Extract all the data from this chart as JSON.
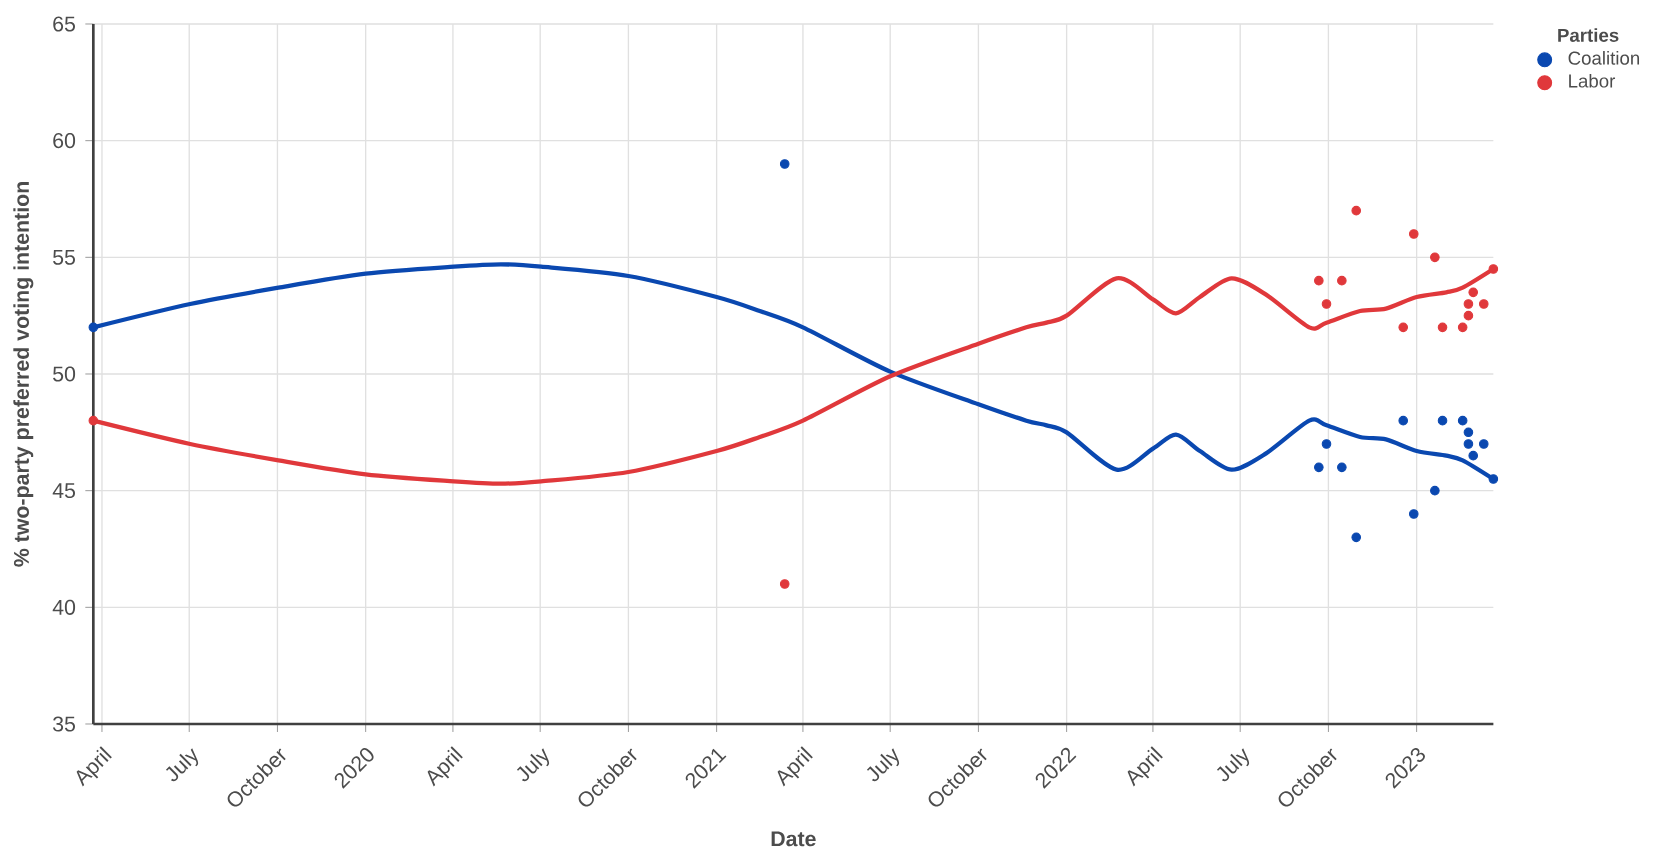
{
  "chart_data": {
    "type": "scatter",
    "xlabel": "Date",
    "ylabel": "% two-party preferred voting intention",
    "legend_title": "Parties",
    "xlim": [
      "2019-03-23",
      "2023-03-22"
    ],
    "ylim": [
      35,
      65
    ],
    "xticks": [
      {
        "value": "2019-04-01",
        "label": "April"
      },
      {
        "value": "2019-07-01",
        "label": "July"
      },
      {
        "value": "2019-10-01",
        "label": "October"
      },
      {
        "value": "2020-01-01",
        "label": "2020"
      },
      {
        "value": "2020-04-01",
        "label": "April"
      },
      {
        "value": "2020-07-01",
        "label": "July"
      },
      {
        "value": "2020-10-01",
        "label": "October"
      },
      {
        "value": "2021-01-01",
        "label": "2021"
      },
      {
        "value": "2021-04-01",
        "label": "April"
      },
      {
        "value": "2021-07-01",
        "label": "July"
      },
      {
        "value": "2021-10-01",
        "label": "October"
      },
      {
        "value": "2022-01-01",
        "label": "2022"
      },
      {
        "value": "2022-04-01",
        "label": "April"
      },
      {
        "value": "2022-07-01",
        "label": "July"
      },
      {
        "value": "2022-10-01",
        "label": "October"
      },
      {
        "value": "2023-01-01",
        "label": "2023"
      }
    ],
    "yticks": [
      35,
      40,
      45,
      50,
      55,
      60,
      65
    ],
    "grid": true,
    "legend": "top right",
    "series": [
      {
        "name": "Coalition",
        "type": "scatter",
        "marker": "circle",
        "color": "#0a48b0",
        "x": [
          "2019-03-23",
          "2021-03-13",
          "2022-09-21",
          "2022-09-29",
          "2022-10-15",
          "2022-10-30",
          "2022-12-18",
          "2022-12-29",
          "2023-01-20",
          "2023-01-28",
          "2023-02-18",
          "2023-02-24",
          "2023-02-24",
          "2023-03-01",
          "2023-03-12",
          "2023-03-22"
        ],
        "values": [
          52,
          59,
          46,
          47,
          46,
          43,
          48,
          44,
          45,
          48,
          48,
          47,
          47.5,
          46.5,
          47,
          45.5
        ]
      },
      {
        "name": "Labor",
        "type": "scatter",
        "marker": "circle",
        "color": "#e0383b",
        "x": [
          "2019-03-23",
          "2021-03-13",
          "2022-09-21",
          "2022-09-29",
          "2022-10-15",
          "2022-10-30",
          "2022-12-18",
          "2022-12-29",
          "2023-01-20",
          "2023-01-28",
          "2023-02-18",
          "2023-02-24",
          "2023-02-24",
          "2023-03-01",
          "2023-03-12",
          "2023-03-22"
        ],
        "values": [
          48,
          41,
          54,
          53,
          54,
          57,
          52,
          56,
          55,
          52,
          52,
          53,
          52.5,
          53.5,
          53,
          54.5
        ]
      },
      {
        "type": "line",
        "marker": "none",
        "color": "#0a48b0",
        "x": [
          "2019-03-23",
          "2019-07-02",
          "2019-10-02",
          "2020-01-01",
          "2020-04-02",
          "2020-05-21",
          "2020-07-02",
          "2020-10-01",
          "2021-01-01",
          "2021-02-15",
          "2021-04-01",
          "2021-07-01",
          "2021-10-01",
          "2021-11-20",
          "2021-12-11",
          "2022-01-01",
          "2022-02-22",
          "2022-04-01",
          "2022-04-25",
          "2022-05-20",
          "2022-06-22",
          "2022-07-28",
          "2022-09-11",
          "2022-09-29",
          "2022-11-03",
          "2022-11-30",
          "2023-01-01",
          "2023-02-01",
          "2023-02-18",
          "2023-03-22"
        ],
        "values": [
          52.0,
          53.0,
          53.7,
          54.3,
          54.6,
          54.7,
          54.6,
          54.2,
          53.3,
          52.7,
          52.0,
          50.1,
          48.7,
          48.0,
          47.8,
          47.5,
          45.9,
          46.8,
          47.4,
          46.7,
          45.9,
          46.6,
          48.0,
          47.8,
          47.3,
          47.2,
          46.7,
          46.5,
          46.3,
          45.5
        ]
      },
      {
        "type": "line",
        "marker": "none",
        "color": "#e0383b",
        "x": [
          "2019-03-23",
          "2019-07-02",
          "2019-10-02",
          "2020-01-01",
          "2020-04-02",
          "2020-05-21",
          "2020-07-02",
          "2020-10-01",
          "2021-01-01",
          "2021-02-15",
          "2021-04-01",
          "2021-07-01",
          "2021-10-01",
          "2021-11-20",
          "2021-12-11",
          "2022-01-01",
          "2022-02-22",
          "2022-04-01",
          "2022-04-25",
          "2022-05-20",
          "2022-06-22",
          "2022-07-28",
          "2022-09-11",
          "2022-09-29",
          "2022-11-03",
          "2022-11-30",
          "2023-01-01",
          "2023-02-01",
          "2023-02-18",
          "2023-03-22"
        ],
        "values": [
          48.0,
          47.0,
          46.3,
          45.7,
          45.4,
          45.3,
          45.4,
          45.8,
          46.7,
          47.3,
          48.0,
          49.9,
          51.3,
          52.0,
          52.2,
          52.5,
          54.1,
          53.2,
          52.6,
          53.3,
          54.1,
          53.4,
          52.0,
          52.2,
          52.7,
          52.8,
          53.3,
          53.5,
          53.7,
          54.5
        ]
      }
    ]
  }
}
